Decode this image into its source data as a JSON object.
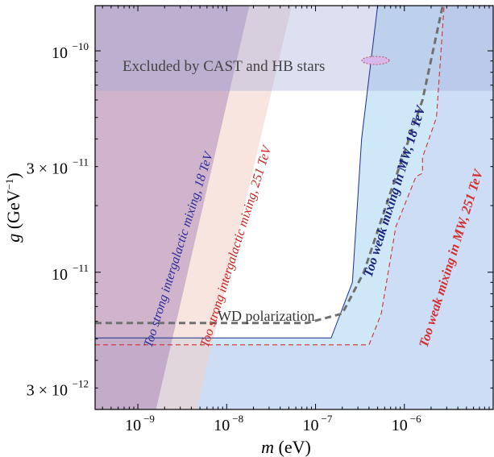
{
  "chart_data": {
    "type": "area",
    "x_axis": {
      "label_var": "m",
      "label_unit": " (eV)",
      "scale": "log",
      "range_eV": [
        3.3e-10,
        1e-05
      ],
      "ticks": [
        {
          "value": 1e-09,
          "mant": "",
          "exp": "−9"
        },
        {
          "value": 1e-08,
          "mant": "",
          "exp": "−8"
        },
        {
          "value": 1e-07,
          "mant": "",
          "exp": "−7"
        },
        {
          "value": 1e-06,
          "mant": "",
          "exp": "−6"
        }
      ]
    },
    "y_axis": {
      "label_var": "g",
      "label_unit": " (GeV",
      "label_unit_exp": "−1",
      "label_close": ")",
      "scale": "log",
      "range_GeV_inv": [
        2.4e-12,
        1.6e-10
      ],
      "ticks": [
        {
          "value": 1e-10,
          "mant": "",
          "exp": "−10"
        },
        {
          "value": 3e-11,
          "mant": "3 × ",
          "exp": "−11"
        },
        {
          "value": 1e-11,
          "mant": "",
          "exp": "−11"
        },
        {
          "value": 3e-12,
          "mant": "3 × ",
          "exp": "−12"
        }
      ]
    },
    "regions": [
      {
        "name": "Excluded by CAST and HB stars",
        "color": "#9aa6d6",
        "g_min": 6.6e-11
      },
      {
        "name": "Too strong intergalactic mixing, 18 TeV",
        "color": "#9f78b2",
        "boundary": [
          [
            1.6e-09,
            2.4e-12
          ],
          [
            1.8e-08,
            1.6e-10
          ]
        ]
      },
      {
        "name": "Too strong intergalactic mixing, 251 TeV",
        "color": "#f2cfc6",
        "boundary": [
          [
            4.6e-09,
            2.4e-12
          ],
          [
            5.4e-08,
            1.6e-10
          ]
        ]
      },
      {
        "name": "Too weak mixing in MW, 18 TeV",
        "color": "#bfe0f5",
        "edge_color": "#1f2e8a",
        "boundary": [
          [
            3.3e-10,
            5.05e-12
          ],
          [
            1.5e-07,
            5.05e-12
          ],
          [
            2.6e-07,
            9e-12
          ],
          [
            3.3e-07,
            4e-11
          ],
          [
            5e-07,
            1.6e-10
          ]
        ]
      },
      {
        "name": "Too weak mixing in MW, 251 TeV",
        "color": "#f5cff0",
        "edge_color": "#d32f2f",
        "boundary": [
          [
            3.3e-10,
            4.7e-12
          ],
          [
            4e-07,
            4.7e-12
          ],
          [
            5.5e-07,
            6.5e-12
          ],
          [
            8e-07,
            1.6e-11
          ],
          [
            1.35e-06,
            2.7e-11
          ],
          [
            1.6e-06,
            2.8e-11
          ],
          [
            1.6e-06,
            3.3e-11
          ],
          [
            2.3e-06,
            5e-11
          ],
          [
            2.8e-06,
            1.6e-10
          ]
        ]
      }
    ],
    "lines": [
      {
        "name": "WD polarization",
        "color": "#707070",
        "style": "dashed",
        "points": [
          [
            3.3e-10,
            5.9e-12
          ],
          [
            8e-08,
            5.9e-12
          ],
          [
            2e-07,
            6.5e-12
          ],
          [
            3.5e-07,
            1e-11
          ],
          [
            7e-07,
            2.3e-11
          ],
          [
            1.6e-06,
            6e-11
          ],
          [
            2.7e-06,
            1.6e-10
          ]
        ]
      }
    ],
    "annotations": [
      {
        "text": "Excluded by CAST and HB stars",
        "color": "#444444",
        "italic": false
      },
      {
        "text": "Too strong intergalactic mixing, 18 TeV",
        "color": "#2a2a9a",
        "italic": true
      },
      {
        "text": "Too strong intergalactic mixing, 251 TeV",
        "color": "#cc2222",
        "italic": true
      },
      {
        "text": "Too weak mixing in MW, 18 TeV",
        "color": "#1a237e",
        "italic": true,
        "bold": true
      },
      {
        "text": "Too weak mixing in MW, 251 TeV",
        "color": "#d32f2f",
        "italic": true,
        "bold": true
      },
      {
        "text": "WD polarization",
        "color": "#333333",
        "italic": false
      }
    ],
    "grid": false,
    "legend": "none"
  }
}
